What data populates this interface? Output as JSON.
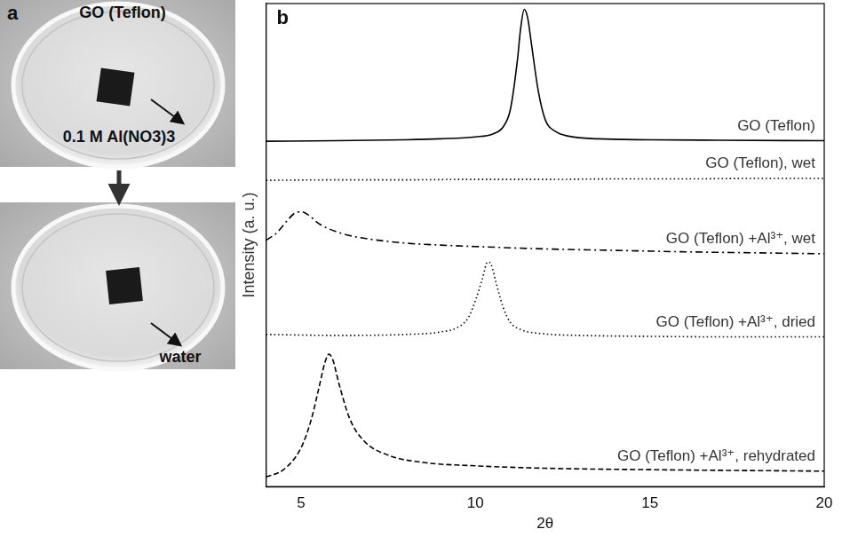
{
  "diagram": {
    "panel_label": "a",
    "title": "GO (Teflon)",
    "solution_label": "0.1 M Al(NO3)3",
    "water_label": "water"
  },
  "chart_data": {
    "panel_label": "b",
    "type": "line",
    "x_label": "2θ",
    "y_label": "Intensity (a. u.)",
    "xlim": [
      4,
      20
    ],
    "xticks": [
      5,
      10,
      15,
      20
    ],
    "ylim": [
      0,
      100
    ],
    "tick_labels": "x",
    "grid": false,
    "series": [
      {
        "name": "GO (Teflon)",
        "color": "#000000",
        "line_style": "solid",
        "x": [
          4,
          6,
          8,
          9,
          10,
          10.5,
          10.8,
          11.0,
          11.2,
          11.3,
          11.4,
          11.5,
          11.6,
          11.8,
          12.0,
          12.3,
          12.7,
          13.5,
          15,
          17,
          20
        ],
        "values": [
          71.5,
          71.6,
          71.8,
          72.0,
          72.4,
          73.0,
          74.5,
          78,
          88,
          95,
          98.8,
          97,
          92,
          82,
          76,
          73.5,
          72.5,
          72.0,
          71.8,
          71.7,
          71.6
        ]
      },
      {
        "name": "GO (Teflon), wet",
        "color": "#000000",
        "line_style": "dotted",
        "x": [
          4,
          6,
          8,
          10,
          12,
          14,
          16,
          18,
          20
        ],
        "values": [
          63.4,
          63.5,
          63.5,
          63.6,
          63.6,
          63.7,
          63.7,
          63.8,
          63.8
        ]
      },
      {
        "name": "GO (Teflon) +Al³⁺, wet",
        "color": "#000000",
        "line_style": "dashdot",
        "x": [
          4,
          4.3,
          4.6,
          4.8,
          5.0,
          5.2,
          5.5,
          6,
          6.5,
          7,
          8,
          9,
          10,
          12,
          14,
          16,
          18,
          20
        ],
        "values": [
          51.0,
          52.5,
          55,
          56.5,
          56.9,
          56.3,
          54.5,
          52.8,
          51.8,
          51.2,
          50.4,
          50.0,
          49.7,
          49.2,
          48.9,
          48.6,
          48.4,
          48.2
        ]
      },
      {
        "name": "GO (Teflon) +Al³⁺, dried",
        "color": "#000000",
        "line_style": "dotted",
        "x": [
          4,
          6,
          8,
          9,
          9.5,
          9.8,
          10.0,
          10.2,
          10.35,
          10.45,
          10.6,
          10.8,
          11.0,
          11.3,
          12,
          13,
          15,
          17,
          20
        ],
        "values": [
          31.5,
          31.3,
          31.5,
          32,
          33,
          35,
          38.5,
          43,
          46.5,
          46,
          42,
          37,
          34,
          32.5,
          31.6,
          31.3,
          31.1,
          31,
          31
        ]
      },
      {
        "name": "GO (Teflon) +Al³⁺, rehydrated",
        "color": "#000000",
        "line_style": "dashed",
        "x": [
          4,
          4.5,
          5.0,
          5.3,
          5.5,
          5.7,
          5.8,
          5.9,
          6.1,
          6.4,
          6.8,
          7.5,
          8.5,
          10,
          12,
          15,
          20
        ],
        "values": [
          2.0,
          3.5,
          8,
          14,
          20,
          26,
          27.4,
          26.5,
          21,
          14,
          9.5,
          6.5,
          5,
          4.3,
          3.8,
          3.5,
          3.2
        ]
      }
    ]
  }
}
